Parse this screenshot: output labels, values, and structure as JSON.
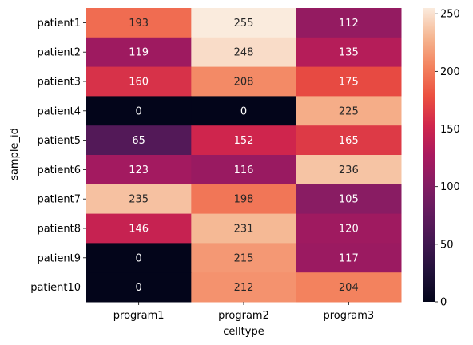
{
  "chart_data": {
    "type": "heatmap",
    "xlabel": "celltype",
    "ylabel": "sample_id",
    "columns": [
      "program1",
      "program2",
      "program3"
    ],
    "rows": [
      "patient1",
      "patient2",
      "patient3",
      "patient4",
      "patient5",
      "patient6",
      "patient7",
      "patient8",
      "patient9",
      "patient10"
    ],
    "values": [
      [
        193,
        255,
        112
      ],
      [
        119,
        248,
        135
      ],
      [
        160,
        208,
        175
      ],
      [
        0,
        0,
        225
      ],
      [
        65,
        152,
        165
      ],
      [
        123,
        116,
        236
      ],
      [
        235,
        198,
        105
      ],
      [
        146,
        231,
        120
      ],
      [
        0,
        215,
        117
      ],
      [
        0,
        212,
        204
      ]
    ],
    "colorbar": {
      "min": 0,
      "max": 255,
      "ticks": [
        0,
        50,
        100,
        150,
        200,
        250
      ]
    },
    "colormap": "rocket",
    "annotations": true
  }
}
